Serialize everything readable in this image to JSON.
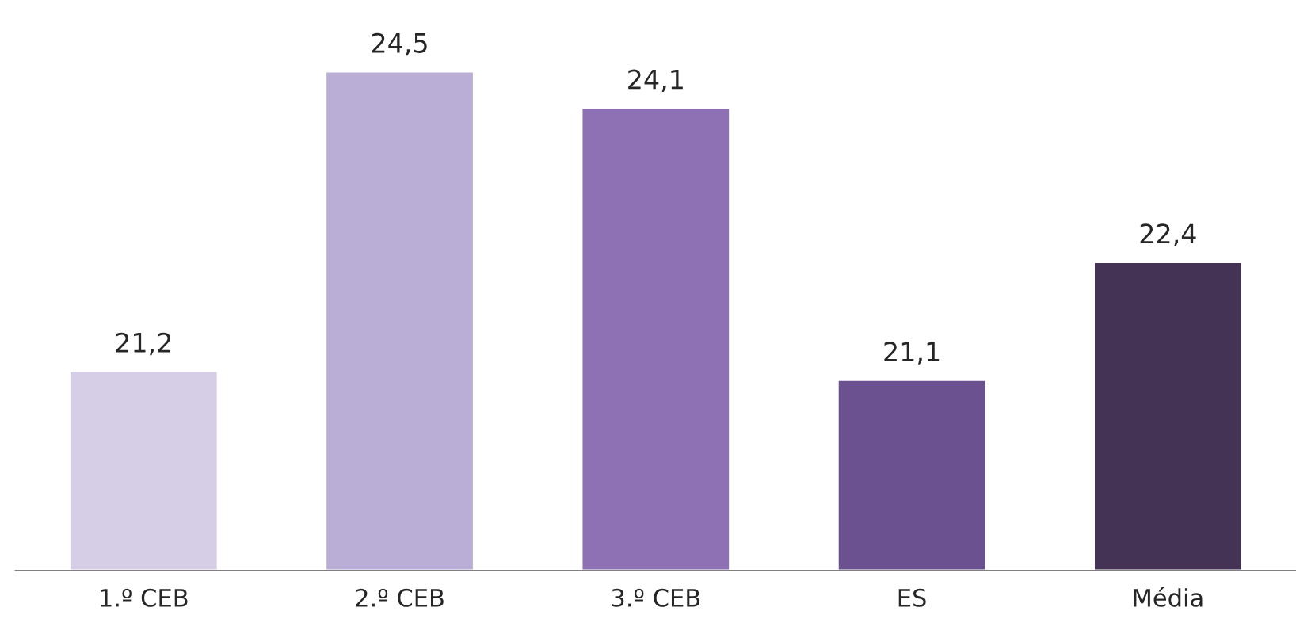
{
  "chart_data": {
    "type": "bar",
    "categories": [
      "1.º CEB",
      "2.º CEB",
      "3.º CEB",
      "ES",
      "Média"
    ],
    "values": [
      21.2,
      24.5,
      24.1,
      21.1,
      22.4
    ],
    "colors": [
      "#d6cde6",
      "#bbaed6",
      "#8e70b5",
      "#6b5190",
      "#453355"
    ],
    "value_labels": [
      "21,2",
      "24,5",
      "24,1",
      "21,1",
      "22,4"
    ],
    "ylim": [
      19,
      24.5
    ],
    "tick_labels": "x",
    "grid": false,
    "legend": false
  }
}
